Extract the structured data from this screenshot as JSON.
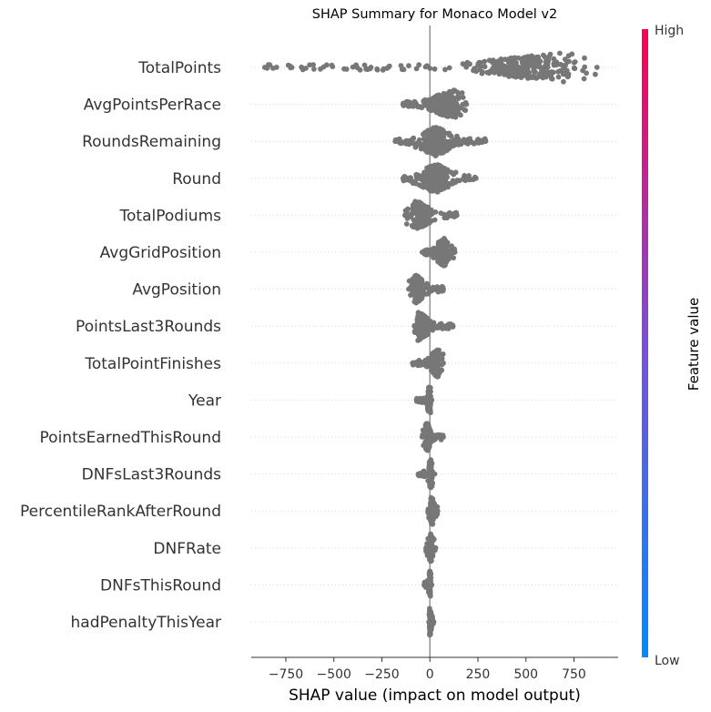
{
  "chart_data": {
    "type": "scatter",
    "subtype": "shap_beeswarm",
    "title": "SHAP Summary for Monaco Model v2",
    "xlabel": "SHAP value (impact on model output)",
    "ylabel": "",
    "xlim": [
      -930,
      980
    ],
    "xticks": [
      -750,
      -500,
      -250,
      0,
      250,
      500,
      750
    ],
    "xtick_labels": [
      "−750",
      "−500",
      "−250",
      "0",
      "250",
      "500",
      "750"
    ],
    "zero_line": 0,
    "grid": "dotted horizontal row lines",
    "point_color": "#777777",
    "colorbar": {
      "label": "Feature value",
      "high_label": "High",
      "low_label": "Low",
      "high_color": "#ff0052",
      "low_color": "#008bfb",
      "placement": "right"
    },
    "features": [
      {
        "name": "TotalPoints",
        "min": -860,
        "max": 870,
        "q1": 20,
        "q3": 690,
        "mode": 690,
        "density": "dense cluster near 550-800, long sparse left tail"
      },
      {
        "name": "AvgPointsPerRace",
        "min": -140,
        "max": 190,
        "q1": -60,
        "q3": 130,
        "mode": 125
      },
      {
        "name": "RoundsRemaining",
        "min": -180,
        "max": 290,
        "q1": -40,
        "q3": 110,
        "mode": 30
      },
      {
        "name": "Round",
        "min": -140,
        "max": 240,
        "q1": -50,
        "q3": 100,
        "mode": 30
      },
      {
        "name": "TotalPodiums",
        "min": -130,
        "max": 140,
        "q1": -80,
        "q3": 40,
        "mode": -70
      },
      {
        "name": "AvgGridPosition",
        "min": -40,
        "max": 130,
        "q1": 30,
        "q3": 100,
        "mode": 70
      },
      {
        "name": "AvgPosition",
        "min": -110,
        "max": 70,
        "q1": -90,
        "q3": -20,
        "mode": -70
      },
      {
        "name": "PointsLast3Rounds",
        "min": -80,
        "max": 120,
        "q1": -70,
        "q3": 20,
        "mode": -60
      },
      {
        "name": "TotalPointFinishes",
        "min": -90,
        "max": 70,
        "q1": -10,
        "q3": 50,
        "mode": 40
      },
      {
        "name": "Year",
        "min": -70,
        "max": 10,
        "q1": -20,
        "q3": 5,
        "mode": 0
      },
      {
        "name": "PointsEarnedThisRound",
        "min": -40,
        "max": 70,
        "q1": -25,
        "q3": 10,
        "mode": -15
      },
      {
        "name": "DNFsLast3Rounds",
        "min": -60,
        "max": 25,
        "q1": -10,
        "q3": 15,
        "mode": 5
      },
      {
        "name": "PercentileRankAfterRound",
        "min": -10,
        "max": 40,
        "q1": 0,
        "q3": 25,
        "mode": 10
      },
      {
        "name": "DNFRate",
        "min": -20,
        "max": 30,
        "q1": -5,
        "q3": 20,
        "mode": 5
      },
      {
        "name": "DNFsThisRound",
        "min": -30,
        "max": 10,
        "q1": -5,
        "q3": 5,
        "mode": 0
      },
      {
        "name": "hadPenaltyThisYear",
        "min": -5,
        "max": 20,
        "q1": -2,
        "q3": 5,
        "mode": 0
      }
    ]
  }
}
